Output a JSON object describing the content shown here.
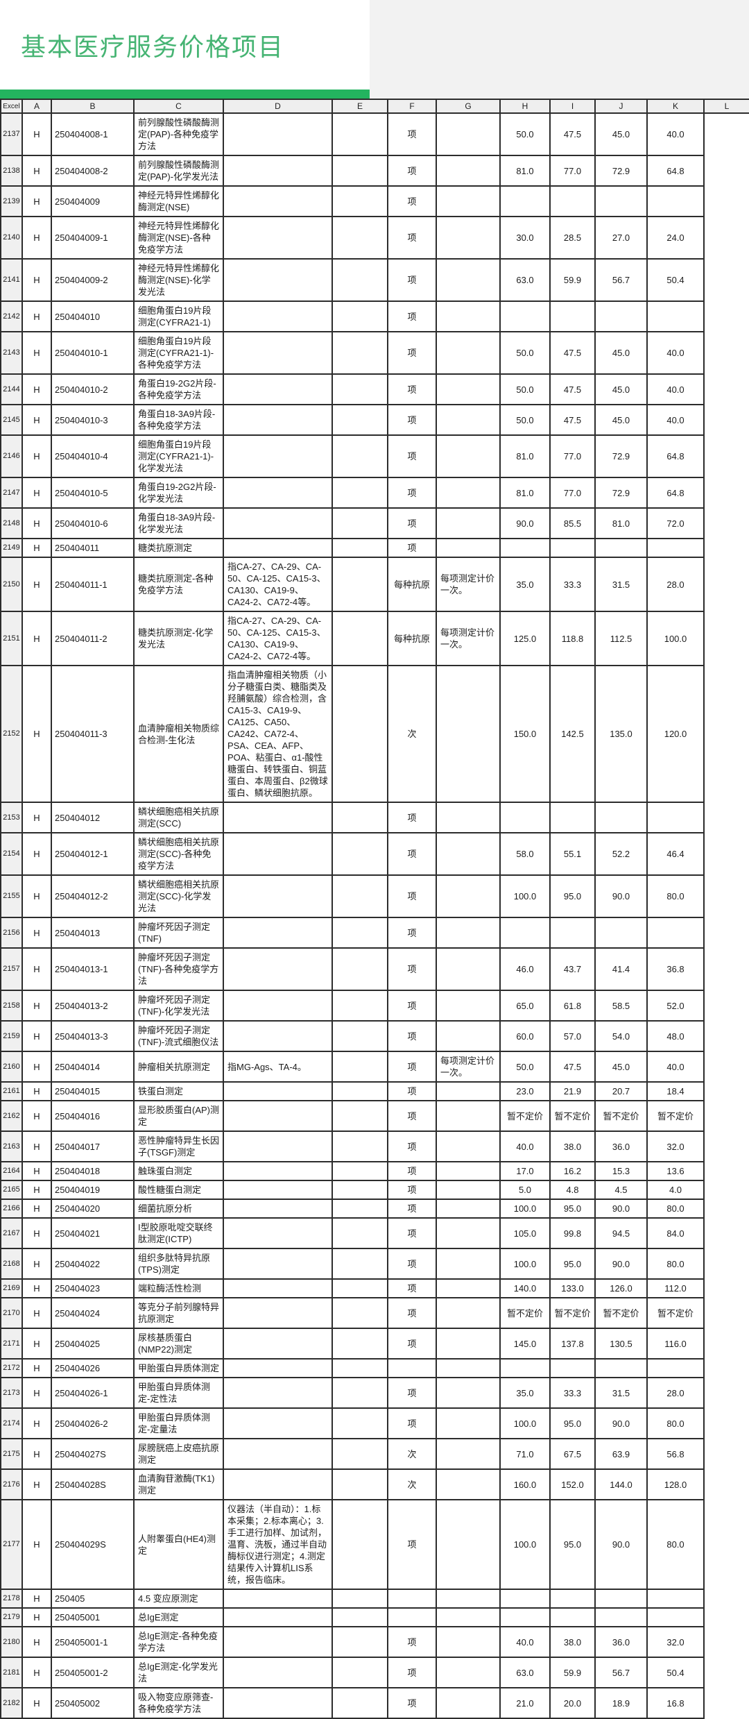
{
  "header": {
    "title": "基本医疗服务价格项目"
  },
  "colors": {
    "title_green": "#46b473",
    "underline_green": "#23b45f",
    "grid": "#2c2c2c",
    "header_fill": "#efefef",
    "top_fill": "#f2f2f2"
  },
  "table": {
    "columns": [
      "Excel",
      "A",
      "B",
      "C",
      "D",
      "E",
      "F",
      "G",
      "H",
      "I",
      "J",
      "K",
      "L"
    ],
    "rows": [
      [
        "2137",
        "H",
        "250404008-1",
        "前列腺酸性磷酸酶测定(PAP)-各种免疫学方法",
        "",
        "",
        "项",
        "",
        "50.0",
        "47.5",
        "45.0",
        "40.0",
        ""
      ],
      [
        "2138",
        "H",
        "250404008-2",
        "前列腺酸性磷酸酶测定(PAP)-化学发光法",
        "",
        "",
        "项",
        "",
        "81.0",
        "77.0",
        "72.9",
        "64.8",
        ""
      ],
      [
        "2139",
        "H",
        "250404009",
        "神经元特异性烯醇化酶测定(NSE)",
        "",
        "",
        "项",
        "",
        "",
        "",
        "",
        "",
        ""
      ],
      [
        "2140",
        "H",
        "250404009-1",
        "神经元特异性烯醇化酶测定(NSE)-各种免疫学方法",
        "",
        "",
        "项",
        "",
        "30.0",
        "28.5",
        "27.0",
        "24.0",
        ""
      ],
      [
        "2141",
        "H",
        "250404009-2",
        "神经元特异性烯醇化酶测定(NSE)-化学发光法",
        "",
        "",
        "项",
        "",
        "63.0",
        "59.9",
        "56.7",
        "50.4",
        ""
      ],
      [
        "2142",
        "H",
        "250404010",
        "细胞角蛋白19片段测定(CYFRA21-1)",
        "",
        "",
        "项",
        "",
        "",
        "",
        "",
        "",
        ""
      ],
      [
        "2143",
        "H",
        "250404010-1",
        "细胞角蛋白19片段测定(CYFRA21-1)-各种免疫学方法",
        "",
        "",
        "项",
        "",
        "50.0",
        "47.5",
        "45.0",
        "40.0",
        ""
      ],
      [
        "2144",
        "H",
        "250404010-2",
        "角蛋白19-2G2片段-各种免疫学方法",
        "",
        "",
        "项",
        "",
        "50.0",
        "47.5",
        "45.0",
        "40.0",
        ""
      ],
      [
        "2145",
        "H",
        "250404010-3",
        "角蛋白18-3A9片段-各种免疫学方法",
        "",
        "",
        "项",
        "",
        "50.0",
        "47.5",
        "45.0",
        "40.0",
        ""
      ],
      [
        "2146",
        "H",
        "250404010-4",
        "细胞角蛋白19片段测定(CYFRA21-1)-化学发光法",
        "",
        "",
        "项",
        "",
        "81.0",
        "77.0",
        "72.9",
        "64.8",
        ""
      ],
      [
        "2147",
        "H",
        "250404010-5",
        "角蛋白19-2G2片段-化学发光法",
        "",
        "",
        "项",
        "",
        "81.0",
        "77.0",
        "72.9",
        "64.8",
        ""
      ],
      [
        "2148",
        "H",
        "250404010-6",
        "角蛋白18-3A9片段-化学发光法",
        "",
        "",
        "项",
        "",
        "90.0",
        "85.5",
        "81.0",
        "72.0",
        ""
      ],
      [
        "2149",
        "H",
        "250404011",
        "糖类抗原测定",
        "",
        "",
        "项",
        "",
        "",
        "",
        "",
        "",
        ""
      ],
      [
        "2150",
        "H",
        "250404011-1",
        "糖类抗原测定-各种免疫学方法",
        "指CA-27、CA-29、CA-50、CA-125、CA15-3、CA130、CA19-9、CA24-2、CA72-4等。",
        "",
        "每种抗原",
        "每项测定计价一次。",
        "35.0",
        "33.3",
        "31.5",
        "28.0",
        ""
      ],
      [
        "2151",
        "H",
        "250404011-2",
        "糖类抗原测定-化学发光法",
        "指CA-27、CA-29、CA-50、CA-125、CA15-3、CA130、CA19-9、CA24-2、CA72-4等。",
        "",
        "每种抗原",
        "每项测定计价一次。",
        "125.0",
        "118.8",
        "112.5",
        "100.0",
        ""
      ],
      [
        "2152",
        "H",
        "250404011-3",
        "血清肿瘤相关物质综合检测-生化法",
        "指血清肿瘤相关物质（小分子糖蛋白类、糖脂类及羟脯氨酸）综合检测，含CA15-3、CA19-9、CA125、CA50、CA242、CA72-4、PSA、CEA、AFP、POA、粘蛋白、α1-酸性糖蛋白、转铁蛋白、铜蓝蛋白、本周蛋白、β2微球蛋白、鳞状细胞抗原。",
        "",
        "次",
        "",
        "150.0",
        "142.5",
        "135.0",
        "120.0",
        ""
      ],
      [
        "2153",
        "H",
        "250404012",
        "鳞状细胞癌相关抗原测定(SCC)",
        "",
        "",
        "项",
        "",
        "",
        "",
        "",
        "",
        ""
      ],
      [
        "2154",
        "H",
        "250404012-1",
        "鳞状细胞癌相关抗原测定(SCC)-各种免疫学方法",
        "",
        "",
        "项",
        "",
        "58.0",
        "55.1",
        "52.2",
        "46.4",
        ""
      ],
      [
        "2155",
        "H",
        "250404012-2",
        "鳞状细胞癌相关抗原测定(SCC)-化学发光法",
        "",
        "",
        "项",
        "",
        "100.0",
        "95.0",
        "90.0",
        "80.0",
        ""
      ],
      [
        "2156",
        "H",
        "250404013",
        "肿瘤坏死因子测定(TNF)",
        "",
        "",
        "项",
        "",
        "",
        "",
        "",
        "",
        ""
      ],
      [
        "2157",
        "H",
        "250404013-1",
        "肿瘤坏死因子测定(TNF)-各种免疫学方法",
        "",
        "",
        "项",
        "",
        "46.0",
        "43.7",
        "41.4",
        "36.8",
        ""
      ],
      [
        "2158",
        "H",
        "250404013-2",
        "肿瘤坏死因子测定(TNF)-化学发光法",
        "",
        "",
        "项",
        "",
        "65.0",
        "61.8",
        "58.5",
        "52.0",
        ""
      ],
      [
        "2159",
        "H",
        "250404013-3",
        "肿瘤坏死因子测定(TNF)-流式细胞仪法",
        "",
        "",
        "项",
        "",
        "60.0",
        "57.0",
        "54.0",
        "48.0",
        ""
      ],
      [
        "2160",
        "H",
        "250404014",
        "肿瘤相关抗原测定",
        "指MG-Ags、TA-4。",
        "",
        "项",
        "每项测定计价一次。",
        "50.0",
        "47.5",
        "45.0",
        "40.0",
        ""
      ],
      [
        "2161",
        "H",
        "250404015",
        "铁蛋白测定",
        "",
        "",
        "项",
        "",
        "23.0",
        "21.9",
        "20.7",
        "18.4",
        ""
      ],
      [
        "2162",
        "H",
        "250404016",
        "显形胶质蛋白(AP)测定",
        "",
        "",
        "项",
        "",
        "暂不定价",
        "暂不定价",
        "暂不定价",
        "暂不定价",
        ""
      ],
      [
        "2163",
        "H",
        "250404017",
        "恶性肿瘤特异生长因子(TSGF)测定",
        "",
        "",
        "项",
        "",
        "40.0",
        "38.0",
        "36.0",
        "32.0",
        ""
      ],
      [
        "2164",
        "H",
        "250404018",
        "触珠蛋白测定",
        "",
        "",
        "项",
        "",
        "17.0",
        "16.2",
        "15.3",
        "13.6",
        ""
      ],
      [
        "2165",
        "H",
        "250404019",
        "酸性糖蛋白测定",
        "",
        "",
        "项",
        "",
        "5.0",
        "4.8",
        "4.5",
        "4.0",
        ""
      ],
      [
        "2166",
        "H",
        "250404020",
        "细菌抗原分析",
        "",
        "",
        "项",
        "",
        "100.0",
        "95.0",
        "90.0",
        "80.0",
        ""
      ],
      [
        "2167",
        "H",
        "250404021",
        "I型胶原吡啶交联终肽测定(ICTP)",
        "",
        "",
        "项",
        "",
        "105.0",
        "99.8",
        "94.5",
        "84.0",
        ""
      ],
      [
        "2168",
        "H",
        "250404022",
        "组织多肽特异抗原(TPS)测定",
        "",
        "",
        "项",
        "",
        "100.0",
        "95.0",
        "90.0",
        "80.0",
        ""
      ],
      [
        "2169",
        "H",
        "250404023",
        "端粒酶活性检测",
        "",
        "",
        "项",
        "",
        "140.0",
        "133.0",
        "126.0",
        "112.0",
        ""
      ],
      [
        "2170",
        "H",
        "250404024",
        "等克分子前列腺特异抗原测定",
        "",
        "",
        "项",
        "",
        "暂不定价",
        "暂不定价",
        "暂不定价",
        "暂不定价",
        ""
      ],
      [
        "2171",
        "H",
        "250404025",
        "尿核基质蛋白(NMP22)测定",
        "",
        "",
        "项",
        "",
        "145.0",
        "137.8",
        "130.5",
        "116.0",
        ""
      ],
      [
        "2172",
        "H",
        "250404026",
        "甲胎蛋白异质体测定",
        "",
        "",
        "",
        "",
        "",
        "",
        "",
        "",
        ""
      ],
      [
        "2173",
        "H",
        "250404026-1",
        "甲胎蛋白异质体测定-定性法",
        "",
        "",
        "项",
        "",
        "35.0",
        "33.3",
        "31.5",
        "28.0",
        ""
      ],
      [
        "2174",
        "H",
        "250404026-2",
        "甲胎蛋白异质体测定-定量法",
        "",
        "",
        "项",
        "",
        "100.0",
        "95.0",
        "90.0",
        "80.0",
        ""
      ],
      [
        "2175",
        "H",
        "250404027S",
        "尿膀胱癌上皮癌抗原测定",
        "",
        "",
        "次",
        "",
        "71.0",
        "67.5",
        "63.9",
        "56.8",
        ""
      ],
      [
        "2176",
        "H",
        "250404028S",
        "血清胸苷激酶(TK1)测定",
        "",
        "",
        "次",
        "",
        "160.0",
        "152.0",
        "144.0",
        "128.0",
        ""
      ],
      [
        "2177",
        "H",
        "250404029S",
        "人附睾蛋白(HE4)测定",
        "仪器法（半自动）：1.标本采集；2.标本离心；3.手工进行加样、加试剂，温育、洗板，通过半自动酶标仪进行测定；4.测定结果传入计算机LIS系统，报告临床。",
        "",
        "项",
        "",
        "100.0",
        "95.0",
        "90.0",
        "80.0",
        ""
      ],
      [
        "2178",
        "H",
        "250405",
        "4.5 变应原测定",
        "",
        "",
        "",
        "",
        "",
        "",
        "",
        "",
        ""
      ],
      [
        "2179",
        "H",
        "250405001",
        "总IgE测定",
        "",
        "",
        "",
        "",
        "",
        "",
        "",
        "",
        ""
      ],
      [
        "2180",
        "H",
        "250405001-1",
        "总IgE测定-各种免疫学方法",
        "",
        "",
        "项",
        "",
        "40.0",
        "38.0",
        "36.0",
        "32.0",
        ""
      ],
      [
        "2181",
        "H",
        "250405001-2",
        "总IgE测定-化学发光法",
        "",
        "",
        "项",
        "",
        "63.0",
        "59.9",
        "56.7",
        "50.4",
        ""
      ],
      [
        "2182",
        "H",
        "250405002",
        "吸入物变应原筛查-各种免疫学方法",
        "",
        "",
        "项",
        "",
        "21.0",
        "20.0",
        "18.9",
        "16.8",
        ""
      ]
    ]
  }
}
